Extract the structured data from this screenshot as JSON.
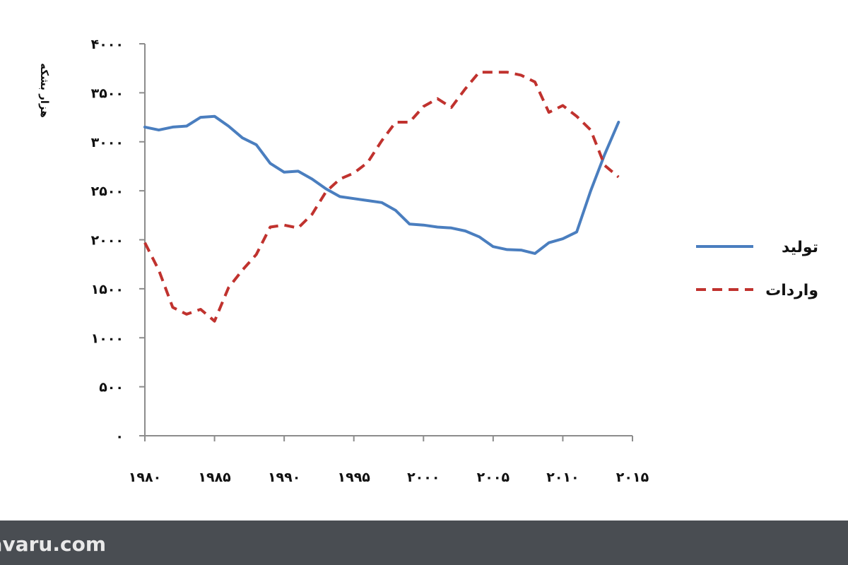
{
  "chart_data": {
    "type": "line",
    "xlabel": "",
    "ylabel": "هزار بشکه",
    "xlim": [
      1980,
      2015
    ],
    "ylim": [
      0,
      4000
    ],
    "x_ticks": [
      1980,
      1985,
      1990,
      1995,
      2000,
      2005,
      2010,
      2015
    ],
    "x_tick_labels": [
      "۱۹۸۰",
      "۱۹۸۵",
      "۱۹۹۰",
      "۱۹۹۵",
      "۲۰۰۰",
      "۲۰۰۵",
      "۲۰۱۰",
      "۲۰۱۵"
    ],
    "y_ticks": [
      0,
      500,
      1000,
      1500,
      2000,
      2500,
      3000,
      3500,
      4000
    ],
    "y_tick_labels": [
      "۰",
      "۵۰۰",
      "۱۰۰۰",
      "۱۵۰۰",
      "۲۰۰۰",
      "۲۵۰۰",
      "۳۰۰۰",
      "۳۵۰۰",
      "۴۰۰۰"
    ],
    "grid": false,
    "legend_position": "right",
    "series": [
      {
        "name": "تولید",
        "color": "#4a7ebf",
        "style": "solid",
        "x": [
          1980,
          1981,
          1982,
          1983,
          1984,
          1985,
          1986,
          1987,
          1988,
          1989,
          1990,
          1991,
          1992,
          1993,
          1994,
          1995,
          1996,
          1997,
          1998,
          1999,
          2000,
          2001,
          2002,
          2003,
          2004,
          2005,
          2006,
          2007,
          2008,
          2009,
          2010,
          2011,
          2012,
          2013,
          2014
        ],
        "values": [
          3150,
          3120,
          3150,
          3160,
          3250,
          3260,
          3160,
          3040,
          2970,
          2780,
          2690,
          2700,
          2620,
          2520,
          2440,
          2420,
          2400,
          2380,
          2300,
          2160,
          2150,
          2130,
          2120,
          2090,
          2030,
          1930,
          1900,
          1895,
          1860,
          1970,
          2010,
          2080,
          2500,
          2870,
          3200
        ]
      },
      {
        "name": "واردات",
        "color": "#c0322e",
        "style": "dashed",
        "x": [
          1980,
          1981,
          1982,
          1983,
          1984,
          1985,
          1986,
          1987,
          1988,
          1989,
          1990,
          1991,
          1992,
          1993,
          1994,
          1995,
          1996,
          1997,
          1998,
          1999,
          2000,
          2001,
          2002,
          2003,
          2004,
          2005,
          2006,
          2007,
          2008,
          2009,
          2010,
          2011,
          2012,
          2013,
          2014
        ],
        "values": [
          1970,
          1690,
          1310,
          1240,
          1290,
          1170,
          1510,
          1690,
          1850,
          2130,
          2150,
          2120,
          2260,
          2490,
          2620,
          2680,
          2790,
          3010,
          3200,
          3200,
          3360,
          3440,
          3350,
          3540,
          3710,
          3710,
          3710,
          3680,
          3610,
          3300,
          3370,
          3260,
          3120,
          2760,
          2640
        ]
      }
    ]
  },
  "footer": {
    "watermark_text": "ravaru.com",
    "background_color": "#494d52"
  }
}
